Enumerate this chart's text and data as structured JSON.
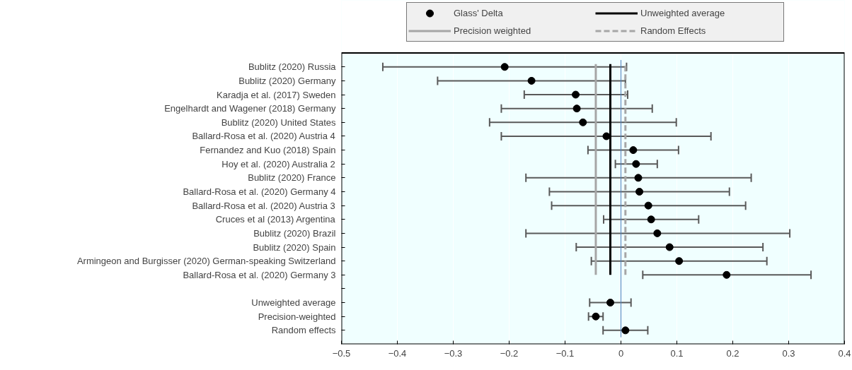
{
  "chart_data": {
    "type": "scatter",
    "orientation": "horizontal",
    "marker": "circle",
    "grid": "x",
    "legend": "top",
    "categories": [
      "Bublitz (2020) Russia",
      "Bublitz (2020) Germany",
      "Karadja et al. (2017) Sweden",
      "Engelhardt and Wagener (2018) Germany",
      "Bublitz (2020) United States",
      "Ballard-Rosa et al. (2020) Austria 4",
      "Fernandez and Kuo (2018) Spain",
      "Hoy et al. (2020) Australia 2",
      "Bublitz (2020) France",
      "Ballard-Rosa et al. (2020) Germany 4",
      "Ballard-Rosa et al. (2020) Austria 3",
      "Cruces et al (2013) Argentina",
      "Bublitz (2020) Brazil",
      "Bublitz (2020) Spain",
      "Armingeon and Burgisser (2020) German-speaking Switzerland",
      "Ballard-Rosa et al. (2020) Germany 3",
      null,
      "Unweighted average",
      "Precision-weighted",
      "Random effects"
    ],
    "series": [
      {
        "name": "Glass' Delta",
        "color": "#000000",
        "values": [
          -0.208,
          -0.16,
          -0.081,
          -0.079,
          -0.068,
          -0.026,
          0.022,
          0.027,
          0.031,
          0.033,
          0.049,
          0.054,
          0.065,
          0.087,
          0.104,
          0.189,
          null,
          -0.019,
          -0.045,
          0.008
        ],
        "errors": [
          [
            -0.426,
            0.01
          ],
          [
            -0.328,
            0.008
          ],
          [
            -0.173,
            0.012
          ],
          [
            -0.214,
            0.056
          ],
          [
            -0.235,
            0.099
          ],
          [
            -0.214,
            0.161
          ],
          [
            -0.059,
            0.103
          ],
          [
            -0.01,
            0.065
          ],
          [
            -0.17,
            0.233
          ],
          [
            -0.128,
            0.194
          ],
          [
            -0.124,
            0.223
          ],
          [
            -0.031,
            0.139
          ],
          [
            -0.17,
            0.302
          ],
          [
            -0.08,
            0.254
          ],
          [
            -0.053,
            0.261
          ],
          [
            0.039,
            0.34
          ],
          null,
          [
            -0.056,
            0.018
          ],
          [
            -0.058,
            -0.032
          ],
          [
            -0.032,
            0.048
          ]
        ]
      }
    ],
    "ref_lines": [
      {
        "axis": "x",
        "value": -0.019,
        "label": "Unweighted average",
        "color": "#000000",
        "line_style": "solid"
      },
      {
        "axis": "x",
        "value": -0.045,
        "label": "Precision weighted",
        "color": "#a6a6a6",
        "line_style": "solid"
      },
      {
        "axis": "x",
        "value": 0.008,
        "label": "Random Effects",
        "color": "#a6a6a6",
        "line_style": "dashed"
      },
      {
        "axis": "x",
        "value": 0,
        "color": "#4f81bd",
        "line_style": "solid"
      }
    ],
    "xlim": [
      -0.5,
      0.4
    ],
    "xticks": [
      -0.5,
      -0.4,
      -0.3,
      -0.2,
      -0.1,
      0,
      0.1,
      0.2,
      0.3,
      0.4
    ]
  }
}
